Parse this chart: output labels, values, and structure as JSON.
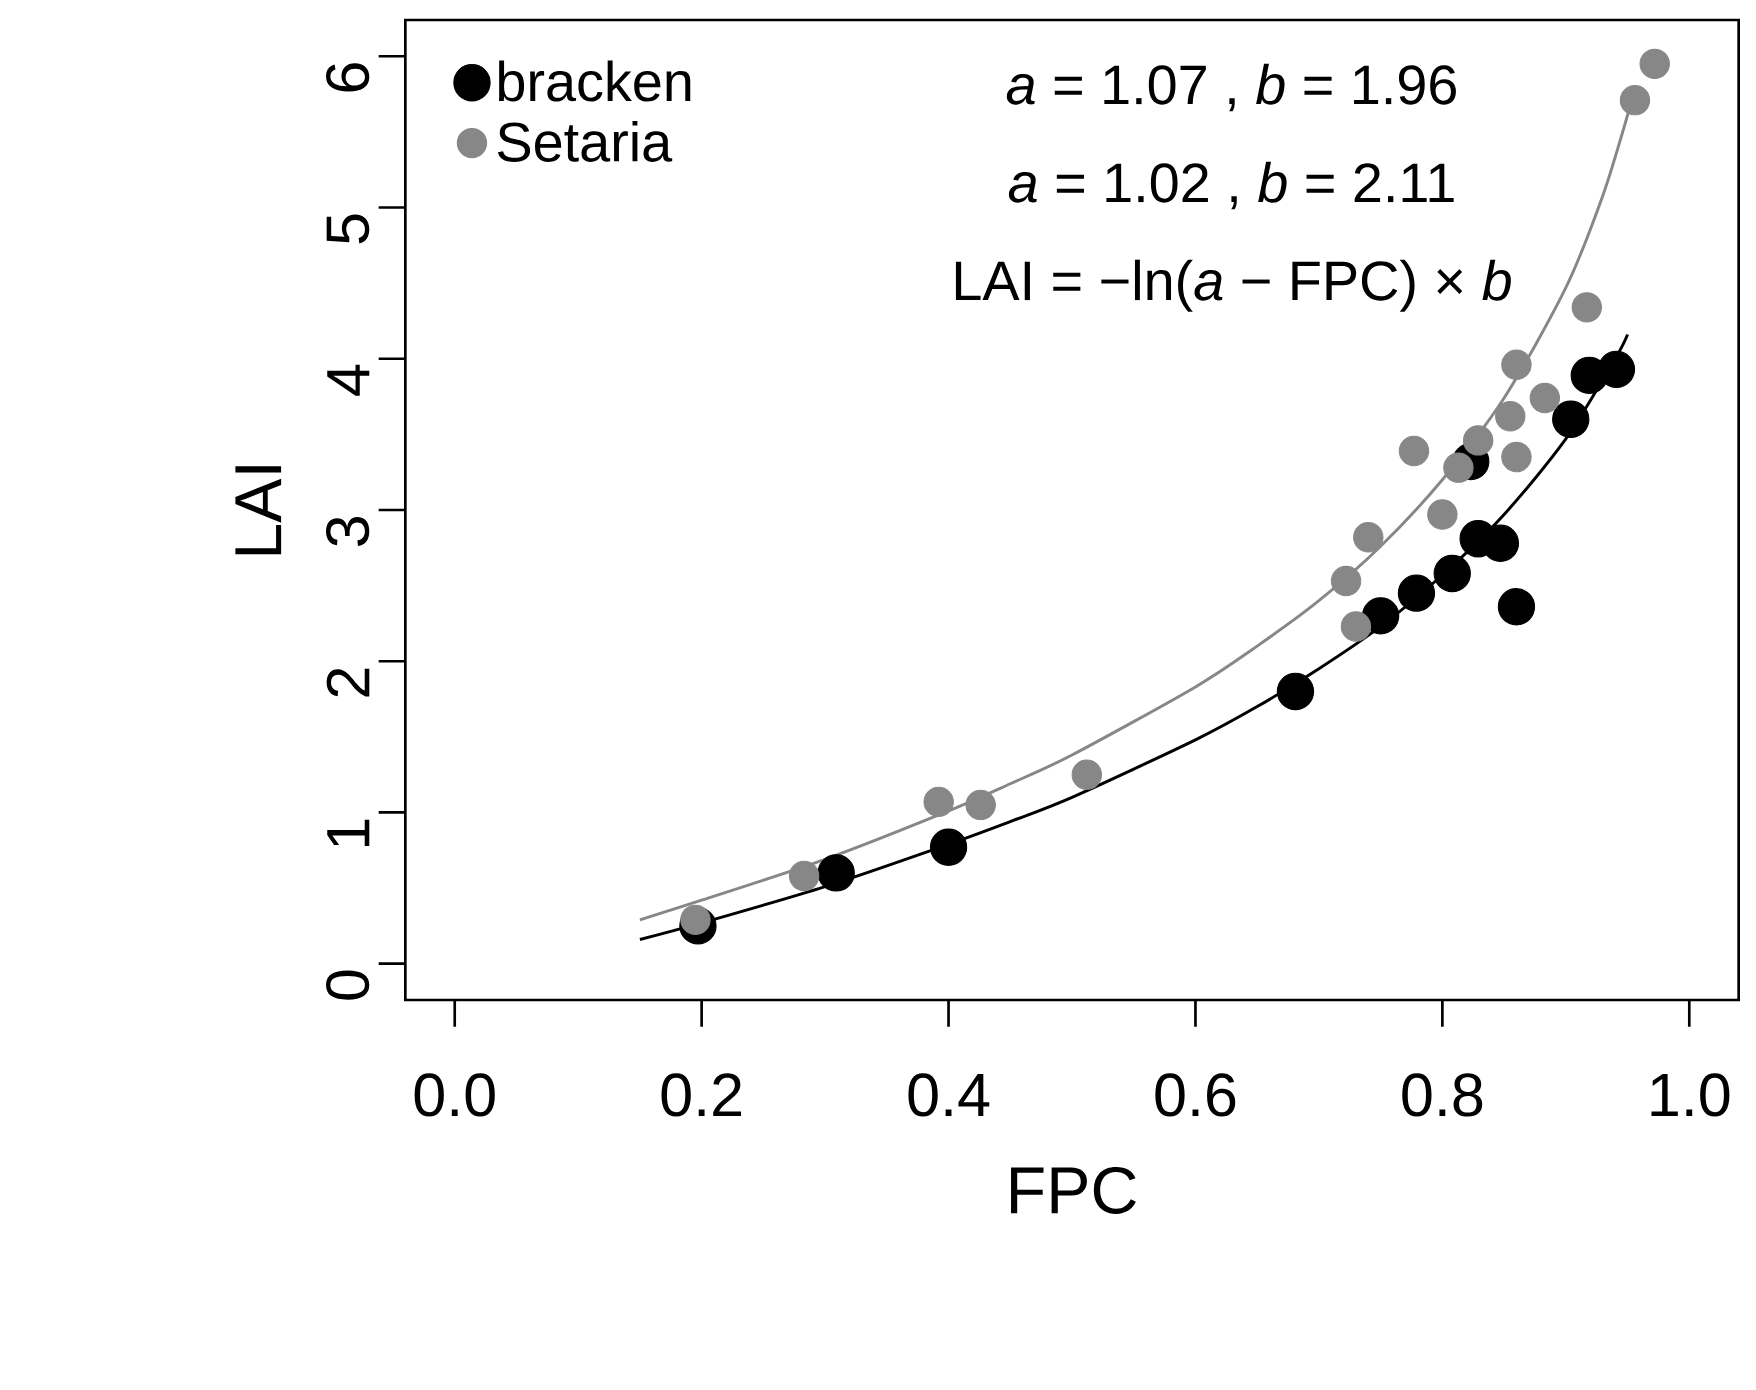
{
  "chart_data": {
    "type": "scatter",
    "xlabel": "FPC",
    "ylabel": "LAI",
    "xlim": [
      -0.04,
      1.04
    ],
    "ylim": [
      -0.24,
      6.24
    ],
    "xticks": [
      {
        "value": 0,
        "label": "0.0"
      },
      {
        "value": 0.2,
        "label": "0.2"
      },
      {
        "value": 0.4,
        "label": "0.4"
      },
      {
        "value": 0.6,
        "label": "0.6"
      },
      {
        "value": 0.8,
        "label": "0.8"
      },
      {
        "value": 1,
        "label": "1.0"
      }
    ],
    "yticks": [
      0,
      1,
      2,
      3,
      4,
      5,
      6
    ],
    "marker": "circle",
    "legend": "top left",
    "grid": false,
    "annotations": [
      "*a* = 1.07 , *b* = 1.96",
      "*a* = 1.02 , *b* = 2.11",
      "LAI = −ln(*a* − FPC) × *b*"
    ],
    "series": [
      {
        "name": "bracken",
        "color": "#000000",
        "x": [
          0.197,
          0.309,
          0.4,
          0.681,
          0.75,
          0.779,
          0.808,
          0.829,
          0.847,
          0.86,
          0.823,
          0.904,
          0.919,
          0.941
        ],
        "values": [
          0.25,
          0.6,
          0.77,
          1.8,
          2.3,
          2.45,
          2.58,
          2.81,
          2.78,
          2.36,
          3.32,
          3.6,
          3.89,
          3.93
        ]
      },
      {
        "name": "Setaria",
        "color": "#878787",
        "x": [
          0.195,
          0.283,
          0.392,
          0.426,
          0.512,
          0.722,
          0.73,
          0.74,
          0.777,
          0.8,
          0.813,
          0.829,
          0.855,
          0.86,
          0.86,
          0.883,
          0.917,
          0.956,
          0.972
        ],
        "values": [
          0.29,
          0.58,
          1.07,
          1.05,
          1.25,
          2.53,
          2.23,
          2.82,
          3.39,
          2.97,
          3.28,
          3.46,
          3.62,
          3.35,
          3.96,
          3.74,
          4.34,
          5.71,
          5.95
        ]
      },
      {
        "type": "line",
        "marker": "none",
        "color": "#000000",
        "x": [
          0.15,
          0.2,
          0.3,
          0.4,
          0.45,
          0.5,
          0.6,
          0.65,
          0.7,
          0.75,
          0.8,
          0.85,
          0.9,
          0.94,
          0.95
        ],
        "values": [
          0.16,
          0.27,
          0.51,
          0.79,
          0.94,
          1.1,
          1.48,
          1.7,
          1.95,
          2.23,
          2.57,
          2.97,
          3.47,
          4.0,
          4.16
        ]
      },
      {
        "type": "line",
        "marker": "none",
        "color": "#878787",
        "x": [
          0.15,
          0.2,
          0.3,
          0.4,
          0.45,
          0.5,
          0.6,
          0.65,
          0.7,
          0.75,
          0.8,
          0.85,
          0.9,
          0.93,
          0.95,
          0.955
        ],
        "values": [
          0.29,
          0.42,
          0.69,
          1.01,
          1.19,
          1.38,
          1.83,
          2.1,
          2.4,
          2.76,
          3.2,
          3.74,
          4.47,
          5.08,
          5.61,
          5.77
        ]
      }
    ]
  }
}
